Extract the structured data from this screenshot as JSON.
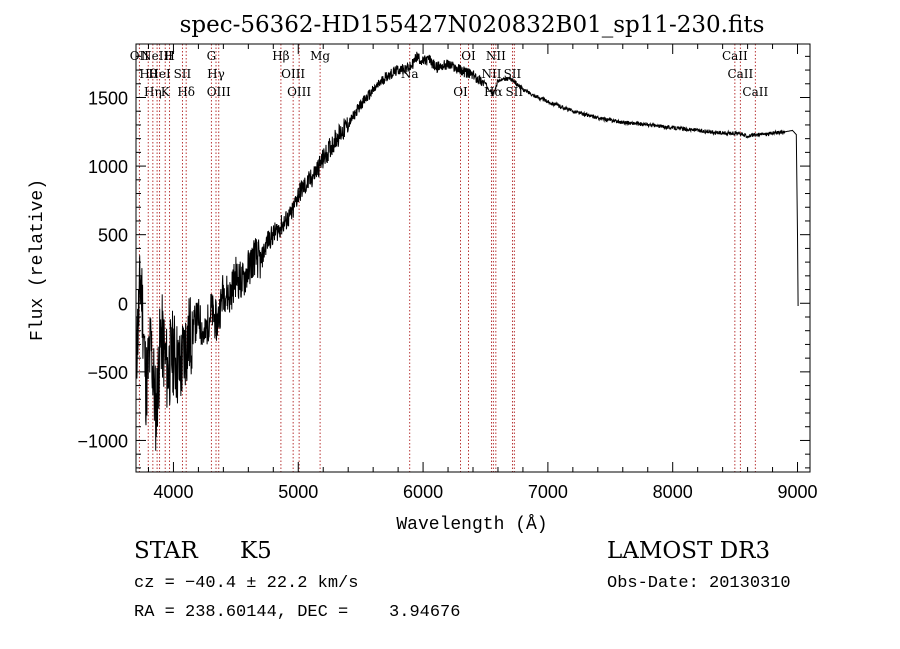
{
  "chart_data": {
    "type": "line",
    "title": "spec-56362-HD155427N020832B01_sp11-230.fits",
    "xlabel": "Wavelength (Å)",
    "ylabel": "Flux (relative)",
    "xlim": [
      3700,
      9100
    ],
    "ylim": [
      -1230,
      1890
    ],
    "x_ticks": [
      4000,
      5000,
      6000,
      7000,
      8000,
      9000
    ],
    "x_tick_labels": [
      "4000",
      "5000",
      "6000",
      "7000",
      "8000",
      "9000"
    ],
    "y_ticks": [
      -1000,
      -500,
      0,
      500,
      1000,
      1500
    ],
    "y_tick_labels": [
      "−1000",
      "−500",
      "0",
      "500",
      "1000",
      "1500"
    ],
    "line_color": "#000000",
    "marker_color": "#b02020",
    "series": [
      {
        "name": "flux",
        "x": [
          3700,
          3740,
          3780,
          3820,
          3860,
          3900,
          3950,
          4000,
          4050,
          4100,
          4150,
          4200,
          4250,
          4300,
          4350,
          4400,
          4450,
          4500,
          4550,
          4600,
          4650,
          4700,
          4750,
          4800,
          4850,
          4900,
          4950,
          5000,
          5100,
          5200,
          5300,
          5400,
          5500,
          5600,
          5700,
          5800,
          5900,
          5950,
          6000,
          6050,
          6100,
          6200,
          6300,
          6400,
          6500,
          6562,
          6600,
          6700,
          6800,
          6900,
          7000,
          7200,
          7400,
          7600,
          7800,
          8000,
          8200,
          8400,
          8500,
          8600,
          8700,
          8800,
          8900,
          8960,
          8990,
          9000,
          9005
        ],
        "y": [
          -400,
          200,
          -600,
          -300,
          -800,
          -200,
          -500,
          -350,
          -500,
          -300,
          -200,
          -100,
          -250,
          -50,
          -150,
          100,
          50,
          200,
          150,
          250,
          350,
          300,
          450,
          500,
          550,
          600,
          650,
          800,
          900,
          1050,
          1200,
          1300,
          1450,
          1550,
          1650,
          1700,
          1720,
          1800,
          1760,
          1780,
          1720,
          1740,
          1700,
          1660,
          1600,
          1520,
          1620,
          1640,
          1560,
          1510,
          1470,
          1400,
          1350,
          1320,
          1300,
          1280,
          1260,
          1240,
          1240,
          1220,
          1230,
          1240,
          1250,
          1260,
          1230,
          500,
          -20
        ]
      }
    ],
    "lines": [
      {
        "x": 3727,
        "label": "OII"
      },
      {
        "x": 3798,
        "label": "Hθ"
      },
      {
        "x": 3835,
        "label": "Hη"
      },
      {
        "x": 3869,
        "label": "NeIII"
      },
      {
        "x": 3889,
        "label": "HeI"
      },
      {
        "x": 3934,
        "label": "K"
      },
      {
        "x": 3969,
        "label": "H"
      },
      {
        "x": 4072,
        "label": "SII"
      },
      {
        "x": 4102,
        "label": "Hδ"
      },
      {
        "x": 4304,
        "label": "G"
      },
      {
        "x": 4341,
        "label": "Hγ"
      },
      {
        "x": 4363,
        "label": "OIII"
      },
      {
        "x": 4861,
        "label": "Hβ"
      },
      {
        "x": 4959,
        "label": "OIII"
      },
      {
        "x": 5007,
        "label": "OIII"
      },
      {
        "x": 5175,
        "label": "Mg"
      },
      {
        "x": 5893,
        "label": "Na"
      },
      {
        "x": 6300,
        "label": "OI"
      },
      {
        "x": 6364,
        "label": "OI"
      },
      {
        "x": 6548,
        "label": "NII"
      },
      {
        "x": 6563,
        "label": "Hα"
      },
      {
        "x": 6583,
        "label": "NII"
      },
      {
        "x": 6716,
        "label": "SII"
      },
      {
        "x": 6731,
        "label": "SII"
      },
      {
        "x": 8498,
        "label": "CaII"
      },
      {
        "x": 8542,
        "label": "CaII"
      },
      {
        "x": 8662,
        "label": "CaII"
      }
    ]
  },
  "info": {
    "object_class": "STAR",
    "subclass": "K5",
    "survey": "LAMOST DR3",
    "cz": "cz = −40.4 ± 22.2 km/s",
    "obs_date": "Obs-Date: 20130310",
    "coords": "RA = 238.60144, DEC =    3.94676"
  }
}
